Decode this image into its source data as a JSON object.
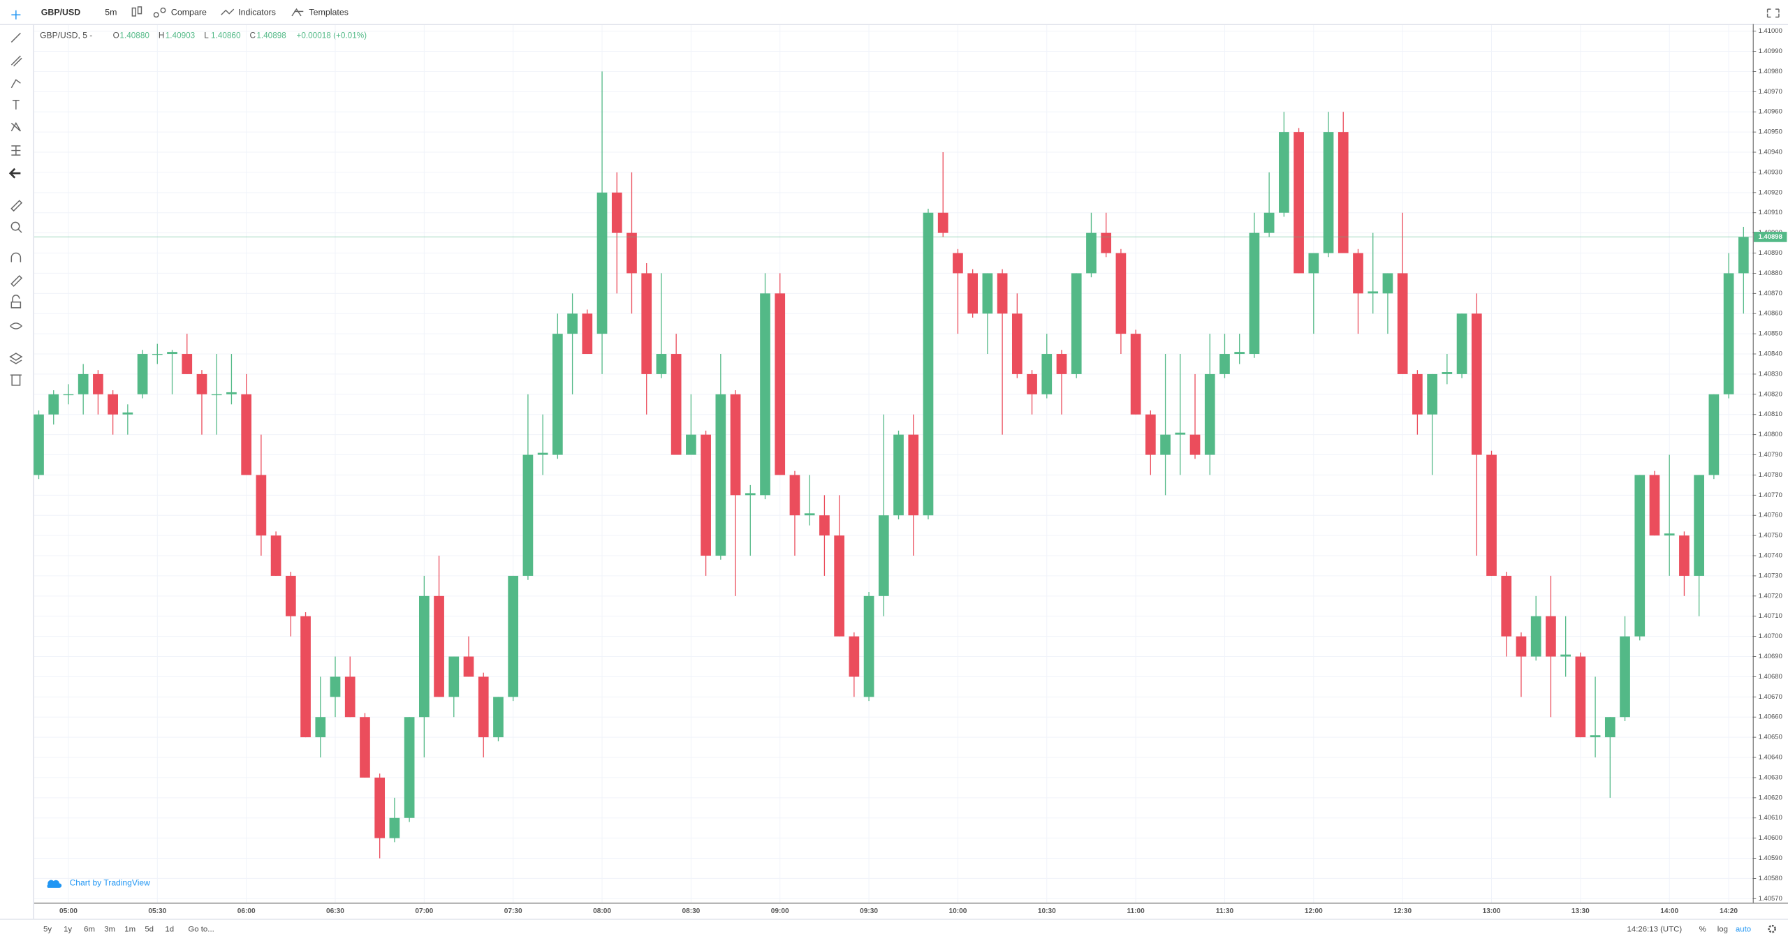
{
  "toolbar": {
    "symbol": "GBP/USD",
    "interval": "5m",
    "compare": "Compare",
    "indicators": "Indicators",
    "templates": "Templates"
  },
  "legend": {
    "title": "GBP/USD, 5 -",
    "ohlc": [
      {
        "key": "O",
        "value": "1.40880"
      },
      {
        "key": "H",
        "value": "1.40903"
      },
      {
        "key": "L",
        "value": "1.40860"
      },
      {
        "key": "C",
        "value": "1.40898"
      }
    ],
    "change": "+0.00018 (+0.01%)"
  },
  "watermark": "Chart by TradingView",
  "bottom_bar": {
    "ranges": [
      "5y",
      "1y",
      "6m",
      "3m",
      "1m",
      "5d",
      "1d"
    ],
    "goto": "Go to...",
    "clock": "14:26:13 (UTC)",
    "options": [
      "%",
      "log",
      "auto"
    ]
  },
  "chart_data": {
    "type": "candlestick",
    "up_color": "#53b987",
    "down_color": "#eb4d5c",
    "grid": true,
    "categories": [
      null,
      null,
      "05:00",
      null,
      null,
      null,
      null,
      null,
      "05:30",
      null,
      null,
      null,
      null,
      null,
      "06:00",
      null,
      null,
      null,
      null,
      null,
      "06:30",
      null,
      null,
      null,
      null,
      null,
      "07:00",
      null,
      null,
      null,
      null,
      null,
      "07:30",
      null,
      null,
      null,
      null,
      null,
      "08:00",
      null,
      null,
      null,
      null,
      null,
      "08:30",
      null,
      null,
      null,
      null,
      null,
      "09:00",
      null,
      null,
      null,
      null,
      null,
      "09:30",
      null,
      null,
      null,
      null,
      null,
      "10:00",
      null,
      null,
      null,
      null,
      null,
      "10:30",
      null,
      null,
      null,
      null,
      null,
      "11:00",
      null,
      null,
      null,
      null,
      null,
      "11:30",
      null,
      null,
      null,
      null,
      null,
      "12:00",
      null,
      null,
      null,
      null,
      null,
      "12:30",
      null,
      null,
      null,
      null,
      null,
      "13:00",
      null,
      null,
      null,
      null,
      null,
      "13:30",
      null,
      null,
      null,
      null,
      null,
      "14:00",
      null,
      null,
      null,
      "14:20",
      null
    ],
    "open": [
      1.4078,
      1.4081,
      1.4082,
      1.4082,
      1.4083,
      1.4082,
      1.4081,
      1.4082,
      1.4084,
      1.4084,
      1.4084,
      1.4083,
      1.4082,
      1.4082,
      1.4082,
      1.4078,
      1.4075,
      1.4073,
      1.4071,
      1.4065,
      1.4067,
      1.4068,
      1.4066,
      1.4063,
      1.406,
      1.4061,
      1.4066,
      1.4072,
      1.4067,
      1.4069,
      1.4068,
      1.4065,
      1.4067,
      1.4073,
      1.4079,
      1.4079,
      1.4085,
      1.4086,
      1.4085,
      1.4092,
      1.409,
      1.4088,
      1.4083,
      1.4084,
      1.4079,
      1.408,
      1.4074,
      1.4082,
      1.4077,
      1.4077,
      1.4087,
      1.4078,
      1.4076,
      1.4076,
      1.4075,
      1.407,
      1.4067,
      1.4072,
      1.4076,
      1.408,
      1.4076,
      1.4091,
      1.4089,
      1.4088,
      1.4086,
      1.4088,
      1.4086,
      1.4083,
      1.4082,
      1.4084,
      1.4083,
      1.4088,
      1.409,
      1.4089,
      1.4085,
      1.4081,
      1.4079,
      1.408,
      1.408,
      1.4079,
      1.4083,
      1.4084,
      1.4084,
      1.409,
      1.4091,
      1.4095,
      1.4088,
      1.4089,
      1.4095,
      1.4089,
      1.4087,
      1.4087,
      1.4088,
      1.4083,
      1.4081,
      1.4083,
      1.4083,
      1.4086,
      1.4079,
      1.4073,
      1.407,
      1.4069,
      1.4071,
      1.4069,
      1.4069,
      1.4065,
      1.4065,
      1.4066,
      1.407,
      1.4078,
      1.4075,
      1.4075,
      1.4073,
      1.4078,
      1.4082,
      1.4088
    ],
    "high": [
      1.40812,
      1.40822,
      1.40825,
      1.40835,
      1.40832,
      1.40822,
      1.40815,
      1.40842,
      1.40845,
      1.40842,
      1.4085,
      1.40832,
      1.4084,
      1.4084,
      1.4083,
      1.408,
      1.40752,
      1.40732,
      1.40712,
      1.4068,
      1.4069,
      1.4069,
      1.40662,
      1.40632,
      1.4062,
      1.4066,
      1.4073,
      1.4074,
      1.4069,
      1.407,
      1.40682,
      1.4067,
      1.4073,
      1.4082,
      1.4081,
      1.4086,
      1.4087,
      1.40862,
      1.4098,
      1.4093,
      1.4093,
      1.40885,
      1.4088,
      1.4085,
      1.4082,
      1.40802,
      1.4084,
      1.40822,
      1.40775,
      1.4088,
      1.4088,
      1.40782,
      1.4078,
      1.4077,
      1.4077,
      1.40702,
      1.40722,
      1.4081,
      1.40802,
      1.4081,
      1.40912,
      1.4094,
      1.40892,
      1.40882,
      1.4088,
      1.40882,
      1.4087,
      1.40832,
      1.4085,
      1.40842,
      1.4088,
      1.4091,
      1.4091,
      1.40892,
      1.40852,
      1.40812,
      1.4084,
      1.4084,
      1.4083,
      1.4085,
      1.4085,
      1.4085,
      1.4091,
      1.4093,
      1.4096,
      1.40952,
      1.4089,
      1.4096,
      1.4096,
      1.40892,
      1.409,
      1.4088,
      1.4091,
      1.40832,
      1.4083,
      1.4084,
      1.4086,
      1.4087,
      1.40792,
      1.40732,
      1.40702,
      1.4072,
      1.4073,
      1.4071,
      1.40692,
      1.4068,
      1.4066,
      1.4071,
      1.4078,
      1.40782,
      1.4079,
      1.40752,
      1.4078,
      1.4082,
      1.4089,
      1.40903
    ],
    "low": [
      1.40778,
      1.40805,
      1.40815,
      1.4081,
      1.4081,
      1.408,
      1.408,
      1.40818,
      1.40835,
      1.4082,
      1.4083,
      1.408,
      1.408,
      1.40815,
      1.4078,
      1.4074,
      1.4073,
      1.407,
      1.4065,
      1.4064,
      1.4066,
      1.4066,
      1.4063,
      1.4059,
      1.40598,
      1.40608,
      1.4064,
      1.4067,
      1.4066,
      1.4068,
      1.4064,
      1.40648,
      1.40668,
      1.40728,
      1.4078,
      1.40788,
      1.4082,
      1.4084,
      1.4083,
      1.4087,
      1.4086,
      1.4081,
      1.40828,
      1.4079,
      1.4079,
      1.4073,
      1.40738,
      1.4072,
      1.4074,
      1.40768,
      1.4078,
      1.4074,
      1.40755,
      1.4073,
      1.407,
      1.4067,
      1.40668,
      1.4071,
      1.40758,
      1.4074,
      1.40758,
      1.40898,
      1.4085,
      1.40858,
      1.4084,
      1.408,
      1.40828,
      1.4081,
      1.40818,
      1.4081,
      1.40828,
      1.40878,
      1.40888,
      1.4084,
      1.4081,
      1.4078,
      1.4077,
      1.4078,
      1.40788,
      1.4078,
      1.40828,
      1.40835,
      1.40838,
      1.40898,
      1.40908,
      1.4088,
      1.4085,
      1.40888,
      1.4089,
      1.4085,
      1.4086,
      1.4085,
      1.4083,
      1.408,
      1.4078,
      1.40825,
      1.40828,
      1.4074,
      1.4073,
      1.4069,
      1.4067,
      1.40688,
      1.4066,
      1.4068,
      1.4065,
      1.4064,
      1.4062,
      1.40658,
      1.40698,
      1.4075,
      1.4073,
      1.4072,
      1.4071,
      1.40778,
      1.40818,
      1.4086
    ],
    "close": [
      1.4081,
      1.4082,
      1.4082,
      1.4083,
      1.4082,
      1.4081,
      1.40811,
      1.4084,
      1.4084,
      1.40841,
      1.4083,
      1.4082,
      1.4082,
      1.40821,
      1.4078,
      1.4075,
      1.4073,
      1.4071,
      1.4065,
      1.4066,
      1.4068,
      1.4066,
      1.4063,
      1.406,
      1.4061,
      1.4066,
      1.4072,
      1.4067,
      1.4069,
      1.4068,
      1.4065,
      1.4067,
      1.4073,
      1.4079,
      1.40791,
      1.4085,
      1.4086,
      1.4084,
      1.4092,
      1.409,
      1.4088,
      1.4083,
      1.4084,
      1.4079,
      1.408,
      1.4074,
      1.4082,
      1.4077,
      1.40771,
      1.4087,
      1.4078,
      1.4076,
      1.40761,
      1.4075,
      1.407,
      1.4068,
      1.4072,
      1.4076,
      1.408,
      1.4076,
      1.4091,
      1.409,
      1.4088,
      1.4086,
      1.4088,
      1.4086,
      1.4083,
      1.4082,
      1.4084,
      1.4083,
      1.4088,
      1.409,
      1.4089,
      1.4085,
      1.4081,
      1.4079,
      1.408,
      1.40801,
      1.4079,
      1.4083,
      1.4084,
      1.40841,
      1.409,
      1.4091,
      1.4095,
      1.4088,
      1.4089,
      1.4095,
      1.4089,
      1.4087,
      1.40871,
      1.4088,
      1.4083,
      1.4081,
      1.4083,
      1.40831,
      1.4086,
      1.4079,
      1.4073,
      1.407,
      1.4069,
      1.4071,
      1.4069,
      1.40691,
      1.4065,
      1.40651,
      1.4066,
      1.407,
      1.4078,
      1.4075,
      1.40751,
      1.4073,
      1.4078,
      1.4082,
      1.4088,
      1.40898
    ],
    "ylim": [
      1.40568,
      1.41003
    ],
    "yticks": [
      {
        "value": 1.4057,
        "label": "1.40570"
      },
      {
        "value": 1.4058,
        "label": "1.40580"
      },
      {
        "value": 1.4059,
        "label": "1.40590"
      },
      {
        "value": 1.406,
        "label": "1.40600"
      },
      {
        "value": 1.4061,
        "label": "1.40610"
      },
      {
        "value": 1.4062,
        "label": "1.40620"
      },
      {
        "value": 1.4063,
        "label": "1.40630"
      },
      {
        "value": 1.4064,
        "label": "1.40640"
      },
      {
        "value": 1.4065,
        "label": "1.40650"
      },
      {
        "value": 1.4066,
        "label": "1.40660"
      },
      {
        "value": 1.4067,
        "label": "1.40670"
      },
      {
        "value": 1.4068,
        "label": "1.40680"
      },
      {
        "value": 1.4069,
        "label": "1.40690"
      },
      {
        "value": 1.407,
        "label": "1.40700"
      },
      {
        "value": 1.4071,
        "label": "1.40710"
      },
      {
        "value": 1.4072,
        "label": "1.40720"
      },
      {
        "value": 1.4073,
        "label": "1.40730"
      },
      {
        "value": 1.4074,
        "label": "1.40740"
      },
      {
        "value": 1.4075,
        "label": "1.40750"
      },
      {
        "value": 1.4076,
        "label": "1.40760"
      },
      {
        "value": 1.4077,
        "label": "1.40770"
      },
      {
        "value": 1.4078,
        "label": "1.40780"
      },
      {
        "value": 1.4079,
        "label": "1.40790"
      },
      {
        "value": 1.408,
        "label": "1.40800"
      },
      {
        "value": 1.4081,
        "label": "1.40810"
      },
      {
        "value": 1.4082,
        "label": "1.40820"
      },
      {
        "value": 1.4083,
        "label": "1.40830"
      },
      {
        "value": 1.4084,
        "label": "1.40840"
      },
      {
        "value": 1.4085,
        "label": "1.40850"
      },
      {
        "value": 1.4086,
        "label": "1.40860"
      },
      {
        "value": 1.4087,
        "label": "1.40870"
      },
      {
        "value": 1.4088,
        "label": "1.40880"
      },
      {
        "value": 1.4089,
        "label": "1.40890"
      },
      {
        "value": 1.409,
        "label": "1.40900"
      },
      {
        "value": 1.4091,
        "label": "1.40910"
      },
      {
        "value": 1.4092,
        "label": "1.40920"
      },
      {
        "value": 1.4093,
        "label": "1.40930"
      },
      {
        "value": 1.4094,
        "label": "1.40940"
      },
      {
        "value": 1.4095,
        "label": "1.40950"
      },
      {
        "value": 1.4096,
        "label": "1.40960"
      },
      {
        "value": 1.4097,
        "label": "1.40970"
      },
      {
        "value": 1.4098,
        "label": "1.40980"
      },
      {
        "value": 1.4099,
        "label": "1.40990"
      },
      {
        "value": 1.41,
        "label": "1.41000"
      }
    ]
  }
}
